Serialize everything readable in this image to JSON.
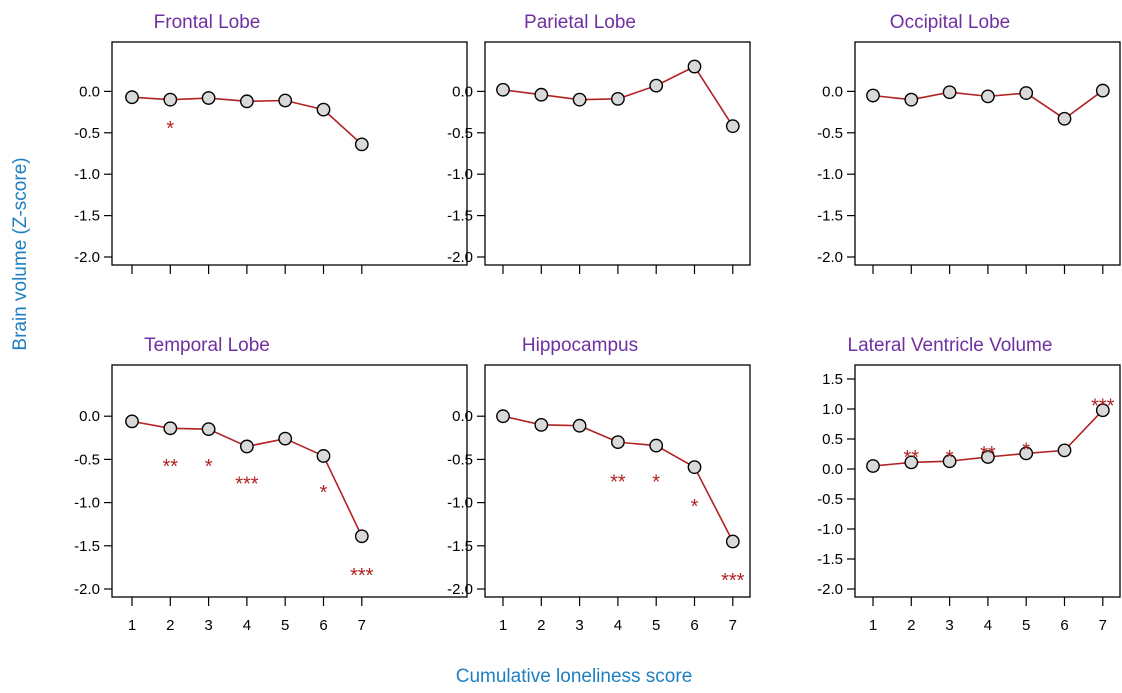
{
  "figure": {
    "ylabel": "Brain volume (Z-score)",
    "xlabel": "Cumulative loneliness score"
  },
  "colors": {
    "title": "#7030a0",
    "axis_title": "#1f7fc0",
    "line": "#b22222",
    "marker_fill": "#d9d9d9",
    "marker_stroke": "#000000",
    "significance": "#b22222"
  },
  "chart_data": [
    {
      "type": "line",
      "title": "Frontal Lobe",
      "x": [
        1,
        2,
        3,
        4,
        5,
        6,
        7
      ],
      "values": [
        -0.07,
        -0.1,
        -0.08,
        -0.12,
        -0.11,
        -0.22,
        -0.64
      ],
      "ylim": [
        -2.0,
        0.5
      ],
      "yticks": [
        "0.0",
        "-0.5",
        "-1.0",
        "-1.5",
        "-2.0"
      ],
      "xticks": [],
      "significance": [
        {
          "x": 2,
          "y": -0.38,
          "label": "*"
        }
      ],
      "grid": false
    },
    {
      "type": "line",
      "title": "Parietal Lobe",
      "x": [
        1,
        2,
        3,
        4,
        5,
        6,
        7
      ],
      "values": [
        0.02,
        -0.04,
        -0.1,
        -0.09,
        0.07,
        0.3,
        -0.42
      ],
      "ylim": [
        -2.0,
        0.5
      ],
      "yticks": [
        "0.0",
        "-0.5",
        "-1.0",
        "-1.5",
        "-2.0"
      ],
      "xticks": [],
      "significance": [],
      "grid": false
    },
    {
      "type": "line",
      "title": "Occipital Lobe",
      "x": [
        1,
        2,
        3,
        4,
        5,
        6,
        7
      ],
      "values": [
        -0.05,
        -0.1,
        -0.01,
        -0.06,
        -0.02,
        -0.33,
        0.01
      ],
      "ylim": [
        -2.0,
        0.5
      ],
      "yticks": [
        "0.0",
        "-0.5",
        "-1.0",
        "-1.5",
        "-2.0"
      ],
      "xticks": [],
      "significance": [],
      "grid": false
    },
    {
      "type": "line",
      "title": "Temporal Lobe",
      "x": [
        1,
        2,
        3,
        4,
        5,
        6,
        7
      ],
      "values": [
        -0.06,
        -0.14,
        -0.15,
        -0.35,
        -0.26,
        -0.46,
        -1.39
      ],
      "ylim": [
        -2.0,
        0.5
      ],
      "yticks": [
        "0.0",
        "-0.5",
        "-1.0",
        "-1.5",
        "-2.0"
      ],
      "xticks": [
        "1",
        "2",
        "3",
        "4",
        "5",
        "6",
        "7"
      ],
      "significance": [
        {
          "x": 2,
          "y": -0.52,
          "label": "**"
        },
        {
          "x": 3,
          "y": -0.52,
          "label": "*"
        },
        {
          "x": 4,
          "y": -0.72,
          "label": "***"
        },
        {
          "x": 6,
          "y": -0.82,
          "label": "*"
        },
        {
          "x": 7,
          "y": -1.78,
          "label": "***"
        }
      ],
      "grid": false
    },
    {
      "type": "line",
      "title": "Hippocampus",
      "x": [
        1,
        2,
        3,
        4,
        5,
        6,
        7
      ],
      "values": [
        0.0,
        -0.1,
        -0.11,
        -0.3,
        -0.34,
        -0.59,
        -1.45
      ],
      "ylim": [
        -2.0,
        0.5
      ],
      "yticks": [
        "0.0",
        "-0.5",
        "-1.0",
        "-1.5",
        "-2.0"
      ],
      "xticks": [
        "1",
        "2",
        "3",
        "4",
        "5",
        "6",
        "7"
      ],
      "significance": [
        {
          "x": 4,
          "y": -0.7,
          "label": "**"
        },
        {
          "x": 5,
          "y": -0.7,
          "label": "*"
        },
        {
          "x": 6,
          "y": -0.98,
          "label": "*"
        },
        {
          "x": 7,
          "y": -1.84,
          "label": "***"
        }
      ],
      "grid": false
    },
    {
      "type": "line",
      "title": "Lateral Ventricle Volume",
      "x": [
        1,
        2,
        3,
        4,
        5,
        6,
        7
      ],
      "values": [
        0.05,
        0.11,
        0.13,
        0.2,
        0.26,
        0.31,
        0.98
      ],
      "ylim": [
        -2.0,
        1.6
      ],
      "yticks": [
        "1.5",
        "1.0",
        "0.5",
        "0.0",
        "-0.5",
        "-1.0",
        "-1.5",
        "-2.0"
      ],
      "xticks": [
        "1",
        "2",
        "3",
        "4",
        "5",
        "6",
        "7"
      ],
      "significance": [
        {
          "x": 2,
          "y": 0.28,
          "label": "**"
        },
        {
          "x": 3,
          "y": 0.28,
          "label": "*"
        },
        {
          "x": 4,
          "y": 0.35,
          "label": "**"
        },
        {
          "x": 5,
          "y": 0.41,
          "label": "*"
        },
        {
          "x": 7,
          "y": 1.14,
          "label": "***"
        }
      ],
      "grid": false
    }
  ]
}
